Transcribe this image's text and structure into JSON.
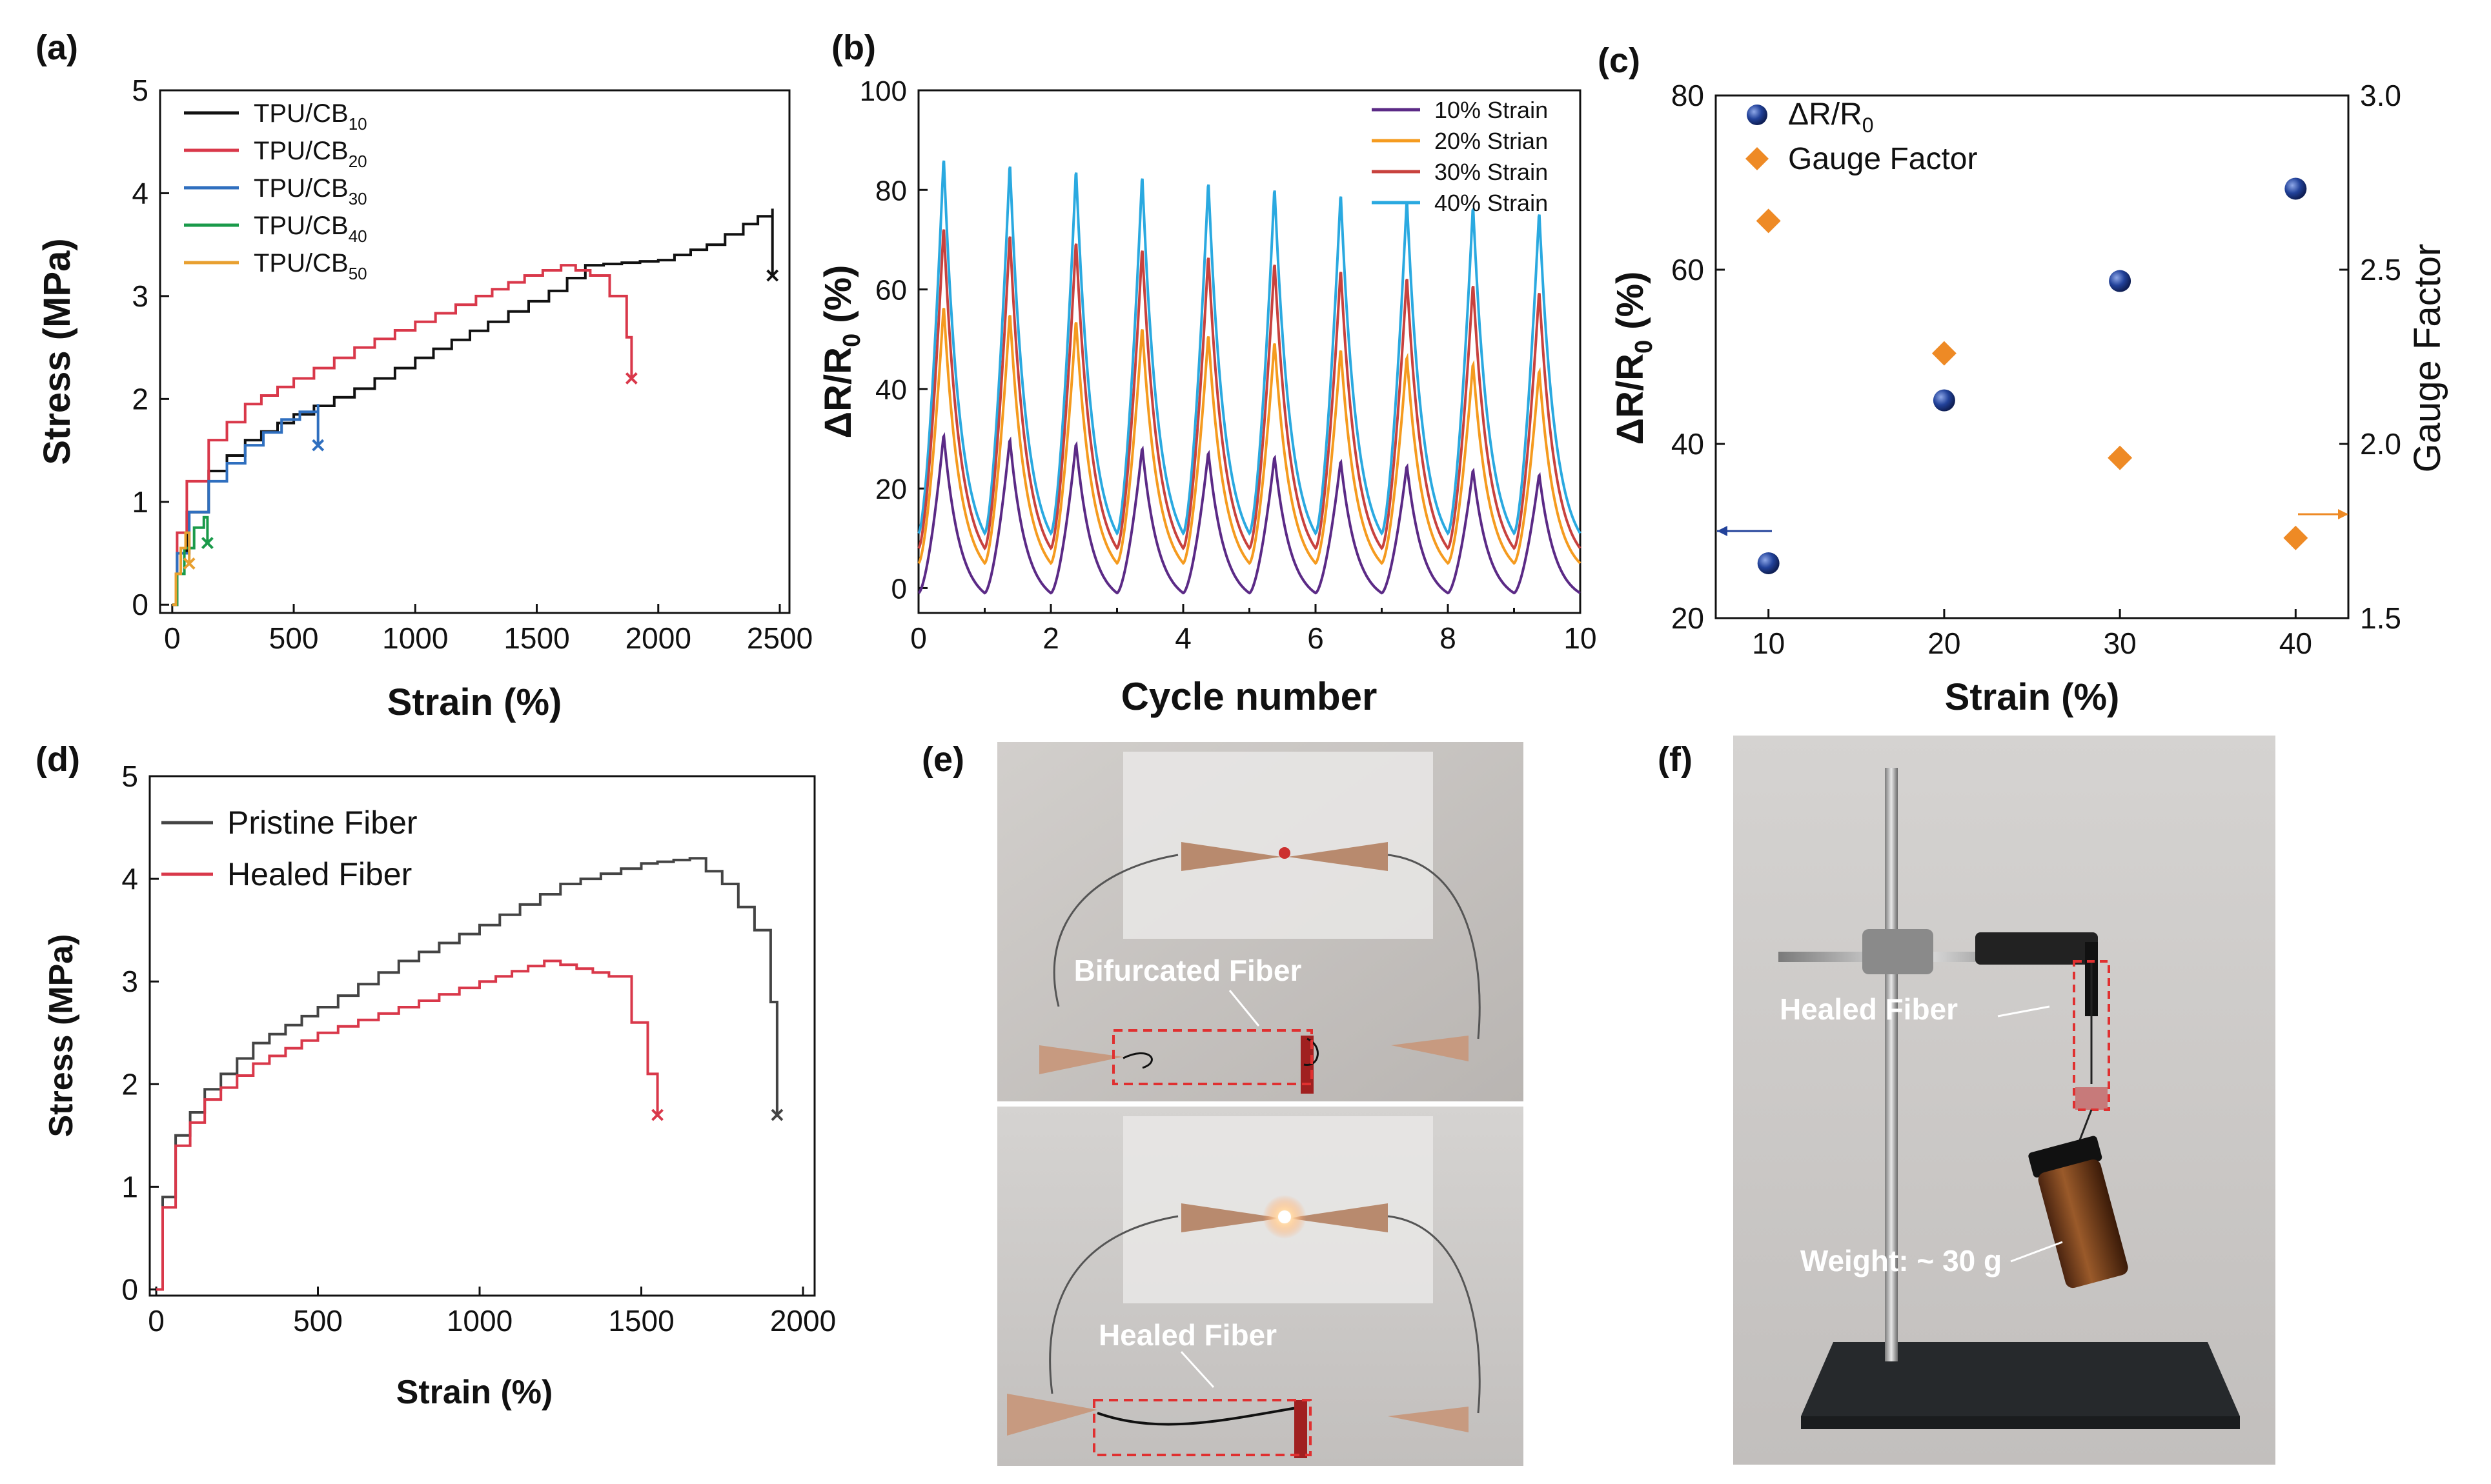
{
  "colors": {
    "black": "#111111",
    "red": "#d9384a",
    "blue": "#2f6fbf",
    "green": "#1a9a4a",
    "orange": "#e8a030",
    "purple": "#5b2a86",
    "orange2": "#f59b1f",
    "red2": "#c8423e",
    "cyan": "#2aa9e0",
    "navy": "#22429a",
    "diamond": "#ee8a25",
    "grey": "#444444",
    "photo_bg": "#c9c6c4",
    "annot_red": "#e03030"
  },
  "chart_data": [
    {
      "panel": "(a)",
      "type": "line",
      "xlabel": "Strain (%)",
      "ylabel": "Stress (MPa)",
      "xlim": [
        0,
        2500
      ],
      "ylim": [
        0,
        5
      ],
      "xticks": [
        "0",
        "500",
        "1000",
        "1500",
        "2000",
        "2500"
      ],
      "yticks": [
        "0",
        "1",
        "2",
        "3",
        "4",
        "5"
      ],
      "legend_position": "top-left",
      "series": [
        {
          "name": "TPU/CB",
          "sub": "10",
          "color": "black",
          "points": [
            [
              0,
              0
            ],
            [
              20,
              0.5
            ],
            [
              60,
              0.9
            ],
            [
              150,
              1.3
            ],
            [
              300,
              1.6
            ],
            [
              500,
              1.85
            ],
            [
              750,
              2.1
            ],
            [
              1000,
              2.4
            ],
            [
              1300,
              2.75
            ],
            [
              1550,
              3.05
            ],
            [
              1700,
              3.3
            ],
            [
              2000,
              3.35
            ],
            [
              2200,
              3.5
            ],
            [
              2350,
              3.7
            ],
            [
              2470,
              3.85
            ],
            [
              2470,
              3.2
            ]
          ],
          "break": [
            2470,
            3.2
          ]
        },
        {
          "name": "TPU/CB",
          "sub": "20",
          "color": "red",
          "points": [
            [
              0,
              0
            ],
            [
              20,
              0.7
            ],
            [
              60,
              1.2
            ],
            [
              150,
              1.6
            ],
            [
              300,
              1.95
            ],
            [
              500,
              2.2
            ],
            [
              750,
              2.5
            ],
            [
              1000,
              2.75
            ],
            [
              1250,
              3.0
            ],
            [
              1450,
              3.2
            ],
            [
              1600,
              3.3
            ],
            [
              1720,
              3.2
            ],
            [
              1800,
              3.0
            ],
            [
              1870,
              2.6
            ],
            [
              1890,
              2.2
            ]
          ],
          "break": [
            1890,
            2.2
          ]
        },
        {
          "name": "TPU/CB",
          "sub": "30",
          "color": "blue",
          "points": [
            [
              0,
              0
            ],
            [
              20,
              0.5
            ],
            [
              70,
              0.9
            ],
            [
              150,
              1.2
            ],
            [
              300,
              1.55
            ],
            [
              450,
              1.8
            ],
            [
              600,
              1.95
            ],
            [
              600,
              1.55
            ]
          ],
          "break": [
            600,
            1.55
          ]
        },
        {
          "name": "TPU/CB",
          "sub": "40",
          "color": "green",
          "points": [
            [
              0,
              0
            ],
            [
              20,
              0.3
            ],
            [
              50,
              0.55
            ],
            [
              90,
              0.75
            ],
            [
              130,
              0.85
            ],
            [
              145,
              0.6
            ]
          ],
          "break": [
            145,
            0.6
          ]
        },
        {
          "name": "TPU/CB",
          "sub": "50",
          "color": "orange",
          "points": [
            [
              0,
              0
            ],
            [
              15,
              0.3
            ],
            [
              35,
              0.55
            ],
            [
              55,
              0.7
            ],
            [
              70,
              0.4
            ]
          ],
          "break": [
            70,
            0.4
          ]
        }
      ]
    },
    {
      "panel": "(b)",
      "type": "line",
      "xlabel": "Cycle number",
      "ylabel": "ΔR/R",
      "ylabel_sub": "0",
      "ylabel_unit": " (%)",
      "xlim": [
        0,
        10
      ],
      "ylim": [
        -5,
        100
      ],
      "xticks": [
        "0",
        "2",
        "4",
        "6",
        "8",
        "10"
      ],
      "yticks": [
        "0",
        "20",
        "40",
        "60",
        "80",
        "100"
      ],
      "legend_position": "top-right",
      "series": [
        {
          "name": "10% Strain",
          "color": "purple",
          "peak_first": 31,
          "peak_last": 23,
          "trough": -1
        },
        {
          "name": "20% Strian",
          "color": "orange2",
          "peak_first": 57,
          "peak_last": 44,
          "trough": 5
        },
        {
          "name": "30% Strain",
          "color": "red2",
          "peak_first": 73,
          "peak_last": 60,
          "trough": 8
        },
        {
          "name": "40% Strain",
          "color": "cyan",
          "peak_first": 87,
          "peak_last": 76,
          "trough": 11
        }
      ]
    },
    {
      "panel": "(c)",
      "type": "scatter",
      "xlabel": "Strain (%)",
      "ylabel_left": "ΔR/R",
      "ylabel_left_sub": "0",
      "ylabel_left_unit": " (%)",
      "ylabel_right": "Gauge Factor",
      "xlim": [
        7,
        43
      ],
      "ylim_left": [
        20,
        80
      ],
      "ylim_right": [
        1.5,
        3.0
      ],
      "xticks": [
        10,
        20,
        30,
        40
      ],
      "yticks_left": [
        "20",
        "40",
        "60",
        "80"
      ],
      "yticks_right": [
        "1.5",
        "2.0",
        "2.5",
        "3.0"
      ],
      "legend_position": "top-left",
      "series": [
        {
          "name": "ΔR/R",
          "sub": "0",
          "axis": "left",
          "marker": "sphere",
          "color": "navy",
          "x": [
            10,
            20,
            30,
            40
          ],
          "y": [
            26.3,
            45.0,
            58.7,
            69.3
          ]
        },
        {
          "name": "Gauge Factor",
          "axis": "right",
          "marker": "diamond",
          "color": "diamond",
          "x": [
            10,
            20,
            30,
            40
          ],
          "y": [
            2.64,
            2.26,
            1.96,
            1.73
          ]
        }
      ]
    },
    {
      "panel": "(d)",
      "type": "line",
      "xlabel": "Strain (%)",
      "ylabel": "Stress (MPa)",
      "xlim": [
        0,
        2000
      ],
      "ylim": [
        0,
        5
      ],
      "xticks": [
        "0",
        "500",
        "1000",
        "1500",
        "2000"
      ],
      "yticks": [
        "0",
        "1",
        "2",
        "3",
        "4",
        "5"
      ],
      "legend_position": "top-left",
      "series": [
        {
          "name": "Pristine Fiber",
          "color": "grey",
          "points": [
            [
              0,
              0
            ],
            [
              20,
              0.9
            ],
            [
              60,
              1.5
            ],
            [
              150,
              1.95
            ],
            [
              300,
              2.4
            ],
            [
              500,
              2.75
            ],
            [
              750,
              3.2
            ],
            [
              1000,
              3.55
            ],
            [
              1250,
              3.95
            ],
            [
              1500,
              4.15
            ],
            [
              1650,
              4.2
            ],
            [
              1750,
              3.95
            ],
            [
              1850,
              3.5
            ],
            [
              1900,
              2.8
            ],
            [
              1920,
              1.7
            ]
          ],
          "break": [
            1920,
            1.7
          ]
        },
        {
          "name": "Healed Fiber",
          "color": "red",
          "points": [
            [
              0,
              0
            ],
            [
              20,
              0.8
            ],
            [
              60,
              1.4
            ],
            [
              150,
              1.85
            ],
            [
              300,
              2.2
            ],
            [
              500,
              2.5
            ],
            [
              750,
              2.75
            ],
            [
              1000,
              3.0
            ],
            [
              1200,
              3.2
            ],
            [
              1400,
              3.05
            ],
            [
              1470,
              2.6
            ],
            [
              1520,
              2.1
            ],
            [
              1550,
              1.7
            ]
          ],
          "break": [
            1550,
            1.7
          ]
        }
      ]
    }
  ],
  "panels": {
    "e": {
      "label": "(e)",
      "top_annotation": "Bifurcated Fiber",
      "bottom_annotation": "Healed Fiber"
    },
    "f": {
      "label": "(f)",
      "annotation_fiber": "Healed Fiber",
      "annotation_weight": "Weight: ~ 30 g"
    }
  }
}
